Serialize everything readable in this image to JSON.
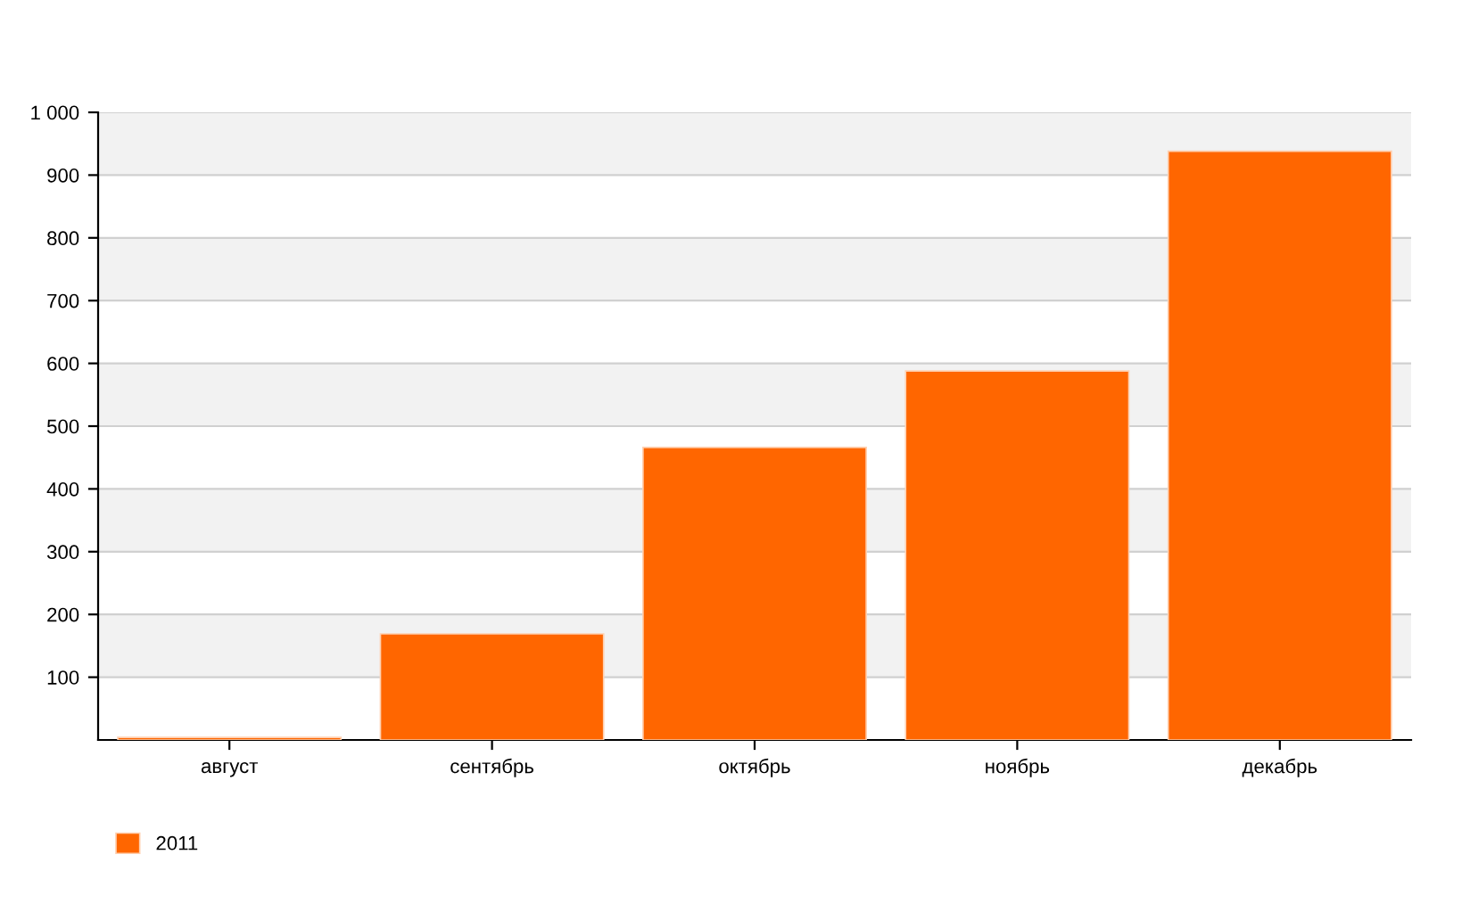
{
  "chart_data": {
    "type": "bar",
    "categories": [
      "август",
      "сентябрь",
      "октябрь",
      "ноябрь",
      "декабрь"
    ],
    "series": [
      {
        "name": "2011",
        "color": "#ff6600",
        "values": [
          4,
          169,
          466,
          588,
          938
        ]
      }
    ],
    "ylim": [
      0,
      1000
    ],
    "yticks": [
      100,
      200,
      300,
      400,
      500,
      600,
      700,
      800,
      900,
      {
        "value": 1000,
        "label": "1 000"
      }
    ],
    "grid": "y",
    "legend": "bottom left"
  }
}
